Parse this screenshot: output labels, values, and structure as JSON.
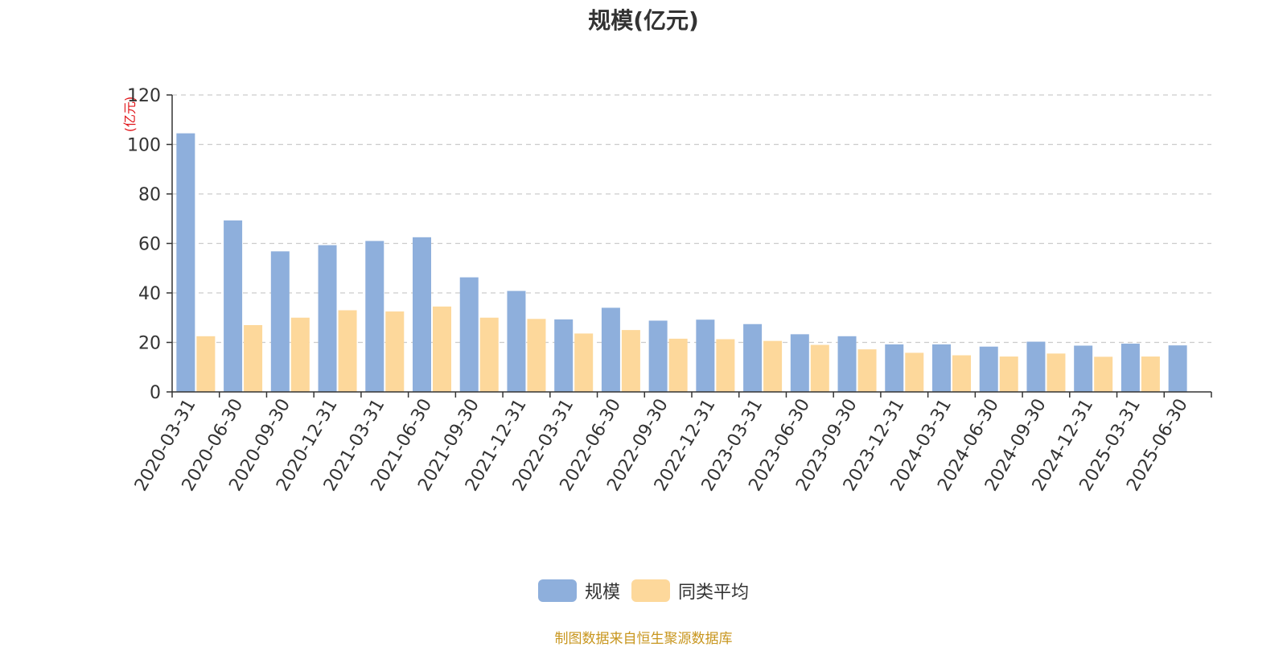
{
  "chart_data": {
    "type": "bar",
    "title": "规模(亿元)",
    "ylabel": "(亿元)",
    "xlabel": "",
    "ylim": [
      0,
      120
    ],
    "yticks": [
      0,
      20,
      40,
      60,
      80,
      100,
      120
    ],
    "grid": true,
    "legend_position": "bottom",
    "categories": [
      "2020-03-31",
      "2020-06-30",
      "2020-09-30",
      "2020-12-31",
      "2021-03-31",
      "2021-06-30",
      "2021-09-30",
      "2021-12-31",
      "2022-03-31",
      "2022-06-30",
      "2022-09-30",
      "2022-12-31",
      "2023-03-31",
      "2023-06-30",
      "2023-09-30",
      "2023-12-31",
      "2024-03-31",
      "2024-06-30",
      "2024-09-30",
      "2024-12-31",
      "2025-03-31",
      "2025-06-30"
    ],
    "series": [
      {
        "name": "规模",
        "color": "#8eafdc",
        "values": [
          104.5,
          69.3,
          56.8,
          59.3,
          61.0,
          62.5,
          46.3,
          40.8,
          29.3,
          34.0,
          28.8,
          29.2,
          27.4,
          23.3,
          22.5,
          19.2,
          19.2,
          18.3,
          20.3,
          18.7,
          19.5,
          18.8
        ]
      },
      {
        "name": "同类平均",
        "color": "#fdd89b",
        "values": [
          22.5,
          27.0,
          30.0,
          33.0,
          32.5,
          34.5,
          30.0,
          29.5,
          23.6,
          25.0,
          21.5,
          21.3,
          20.6,
          19.0,
          17.2,
          15.8,
          14.8,
          14.3,
          15.5,
          14.2,
          14.3,
          null
        ]
      }
    ]
  },
  "source_note": "制图数据来自恒生聚源数据库"
}
